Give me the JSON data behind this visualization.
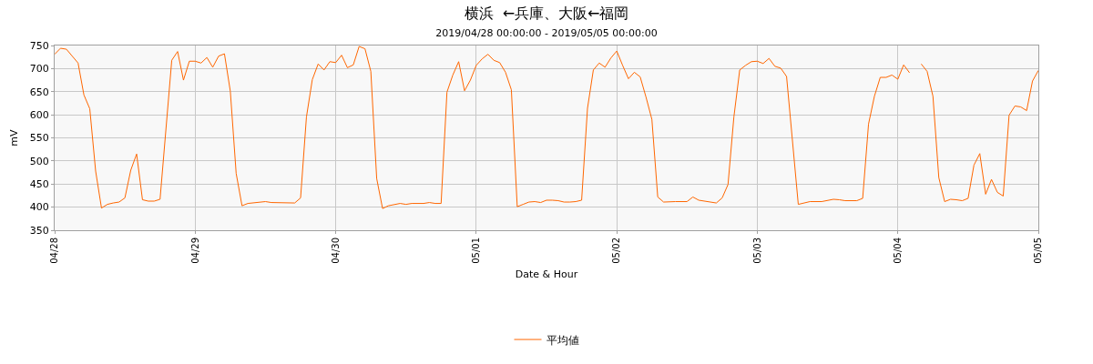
{
  "chart_data": {
    "type": "line",
    "title": "横浜  ←兵庫、大阪←福岡",
    "subtitle": "2019/04/28 00:00:00 - 2019/05/05 00:00:00",
    "xlabel": "Date & Hour",
    "ylabel": "mV",
    "x": [
      "2019-04-28T00:00",
      "2019-04-28T01:00",
      "2019-04-28T02:00",
      "2019-04-28T04:00",
      "2019-04-28T05:00",
      "2019-04-28T06:00",
      "2019-04-28T07:00",
      "2019-04-28T08:00",
      "2019-04-28T09:00",
      "2019-04-28T10:00",
      "2019-04-28T11:00",
      "2019-04-28T12:00",
      "2019-04-28T13:00",
      "2019-04-28T14:00",
      "2019-04-28T15:00",
      "2019-04-28T16:00",
      "2019-04-28T17:00",
      "2019-04-28T18:00",
      "2019-04-28T20:00",
      "2019-04-28T21:00",
      "2019-04-28T22:00",
      "2019-04-28T23:00",
      "2019-04-29T00:00",
      "2019-04-29T01:00",
      "2019-04-29T02:00",
      "2019-04-29T03:00",
      "2019-04-29T04:00",
      "2019-04-29T05:00",
      "2019-04-29T06:00",
      "2019-04-29T07:00",
      "2019-04-29T08:00",
      "2019-04-29T09:00",
      "2019-04-29T12:00",
      "2019-04-29T13:00",
      "2019-04-29T17:00",
      "2019-04-29T18:00",
      "2019-04-29T19:00",
      "2019-04-29T20:00",
      "2019-04-29T21:00",
      "2019-04-29T22:00",
      "2019-04-29T23:00",
      "2019-04-30T00:00",
      "2019-04-30T01:00",
      "2019-04-30T02:00",
      "2019-04-30T03:00",
      "2019-04-30T04:00",
      "2019-04-30T05:00",
      "2019-04-30T06:00",
      "2019-04-30T07:00",
      "2019-04-30T08:00",
      "2019-04-30T09:00",
      "2019-04-30T11:00",
      "2019-04-30T12:00",
      "2019-04-30T13:00",
      "2019-04-30T15:00",
      "2019-04-30T16:00",
      "2019-04-30T17:00",
      "2019-04-30T18:00",
      "2019-04-30T19:00",
      "2019-04-30T20:00",
      "2019-04-30T21:00",
      "2019-04-30T22:00",
      "2019-04-30T23:00",
      "2019-05-01T00:00",
      "2019-05-01T01:00",
      "2019-05-01T02:00",
      "2019-05-01T03:00",
      "2019-05-01T04:00",
      "2019-05-01T05:00",
      "2019-05-01T06:00",
      "2019-05-01T07:00",
      "2019-05-01T08:00",
      "2019-05-01T09:00",
      "2019-05-01T10:00",
      "2019-05-01T11:00",
      "2019-05-01T12:00",
      "2019-05-01T13:00",
      "2019-05-01T14:00",
      "2019-05-01T15:00",
      "2019-05-01T16:00",
      "2019-05-01T17:00",
      "2019-05-01T18:00",
      "2019-05-01T19:00",
      "2019-05-01T20:00",
      "2019-05-01T21:00",
      "2019-05-01T22:00",
      "2019-05-01T23:00",
      "2019-05-02T00:00",
      "2019-05-02T01:00",
      "2019-05-02T02:00",
      "2019-05-02T03:00",
      "2019-05-02T04:00",
      "2019-05-02T05:00",
      "2019-05-02T06:00",
      "2019-05-02T07:00",
      "2019-05-02T08:00",
      "2019-05-02T10:00",
      "2019-05-02T12:00",
      "2019-05-02T13:00",
      "2019-05-02T14:00",
      "2019-05-02T16:00",
      "2019-05-02T17:00",
      "2019-05-02T18:00",
      "2019-05-02T19:00",
      "2019-05-02T20:00",
      "2019-05-02T21:00",
      "2019-05-02T22:00",
      "2019-05-02T23:00",
      "2019-05-03T00:00",
      "2019-05-03T01:00",
      "2019-05-03T02:00",
      "2019-05-03T03:00",
      "2019-05-03T04:00",
      "2019-05-03T05:00",
      "2019-05-03T07:00",
      "2019-05-03T09:00",
      "2019-05-03T11:00",
      "2019-05-03T13:00",
      "2019-05-03T14:00",
      "2019-05-03T15:00",
      "2019-05-03T17:00",
      "2019-05-03T18:00",
      "2019-05-03T19:00",
      "2019-05-03T20:00",
      "2019-05-03T21:00",
      "2019-05-03T22:00",
      "2019-05-03T23:00",
      "2019-05-04T00:00",
      "2019-05-04T01:00",
      "2019-05-04T02:00",
      "2019-05-04T03:00",
      "2019-05-04T04:00",
      "2019-05-04T05:00",
      "2019-05-04T06:00",
      "2019-05-04T07:00",
      "2019-05-04T08:00",
      "2019-05-04T09:00",
      "2019-05-04T10:00",
      "2019-05-04T11:00",
      "2019-05-04T12:00",
      "2019-05-04T13:00",
      "2019-05-04T14:00",
      "2019-05-04T15:00",
      "2019-05-04T16:00",
      "2019-05-04T17:00",
      "2019-05-04T18:00",
      "2019-05-04T19:00",
      "2019-05-04T20:00",
      "2019-05-04T21:00",
      "2019-05-04T22:00",
      "2019-05-04T23:00",
      "2019-05-05T00:00"
    ],
    "series": [
      {
        "name": "平均値",
        "color": "#ff6600",
        "values": [
          731,
          744,
          742,
          712,
          643,
          613,
          478,
          398,
          406,
          409,
          411,
          420,
          480,
          515,
          416,
          413,
          413,
          417,
          718,
          737,
          675,
          716,
          716,
          712,
          724,
          703,
          727,
          732,
          651,
          473,
          403,
          408,
          412,
          410,
          409,
          420,
          595,
          676,
          710,
          697,
          715,
          713,
          729,
          702,
          708,
          748,
          743,
          694,
          462,
          397,
          403,
          408,
          406,
          408,
          408,
          410,
          408,
          408,
          649,
          686,
          715,
          652,
          675,
          707,
          721,
          731,
          718,
          713,
          692,
          654,
          401,
          406,
          411,
          412,
          410,
          415,
          415,
          414,
          411,
          411,
          412,
          415,
          614,
          697,
          712,
          703,
          723,
          738,
          707,
          678,
          692,
          682,
          638,
          590,
          422,
          411,
          412,
          412,
          422,
          415,
          411,
          409,
          420,
          449,
          595,
          697,
          707,
          715,
          716,
          711,
          722,
          705,
          701,
          683,
          406,
          412,
          412,
          417,
          416,
          414,
          414,
          419,
          580,
          640,
          681,
          681,
          686,
          677,
          708,
          691,
          null,
          710,
          694,
          640,
          464,
          412,
          417,
          416,
          414,
          419,
          491,
          516,
          428,
          460,
          432,
          424,
          599,
          619,
          617,
          609,
          673,
          696
        ]
      }
    ],
    "xlim": [
      "2019-04-28T00:00",
      "2019-05-05T00:00"
    ],
    "xticks": [
      {
        "value": "2019-04-28",
        "label": "04/28"
      },
      {
        "value": "2019-04-29",
        "label": "04/29"
      },
      {
        "value": "2019-04-30",
        "label": "04/30"
      },
      {
        "value": "2019-05-01",
        "label": "05/01"
      },
      {
        "value": "2019-05-02",
        "label": "05/02"
      },
      {
        "value": "2019-05-03",
        "label": "05/03"
      },
      {
        "value": "2019-05-04",
        "label": "05/04"
      },
      {
        "value": "2019-05-05",
        "label": "05/05"
      }
    ],
    "ylim": [
      350,
      750
    ],
    "yticks": [
      350,
      400,
      450,
      500,
      550,
      600,
      650,
      700,
      750
    ],
    "grid": true,
    "legend": "bottom",
    "marker": "none",
    "line_style": "solid"
  }
}
